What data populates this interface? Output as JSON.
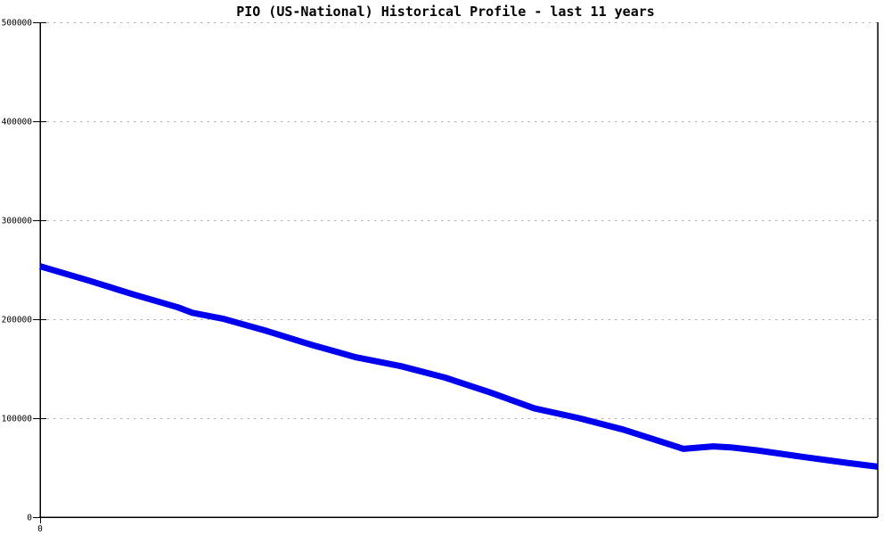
{
  "chart_data": {
    "type": "line",
    "title": "PIO (US-National) Historical Profile - last 11 years",
    "xlabel": "",
    "ylabel": "",
    "xlim": [
      0,
      11
    ],
    "ylim": [
      0,
      500000
    ],
    "y_ticks": [
      0,
      100000,
      200000,
      300000,
      400000,
      500000
    ],
    "y_tick_labels": [
      "0",
      "100000",
      "200000",
      "300000",
      "400000",
      "500000"
    ],
    "x_tick_labels": [
      {
        "label": "0",
        "x": 0
      }
    ],
    "grid": "horizontal-dashed",
    "legend": "none",
    "colors": {
      "line": "#0000ee",
      "grid": "#b4b4b4",
      "axis": "#000000",
      "text": "#000000",
      "background": "#ffffff"
    },
    "series": [
      {
        "name": "PIO (US-National)",
        "color": "#0000ee",
        "points": [
          {
            "x": 0.0,
            "y": 253500
          },
          {
            "x": 0.64,
            "y": 239000
          },
          {
            "x": 1.23,
            "y": 225000
          },
          {
            "x": 1.81,
            "y": 212000
          },
          {
            "x": 2.0,
            "y": 206500
          },
          {
            "x": 2.4,
            "y": 200500
          },
          {
            "x": 2.98,
            "y": 188000
          },
          {
            "x": 3.57,
            "y": 174000
          },
          {
            "x": 4.15,
            "y": 161500
          },
          {
            "x": 4.74,
            "y": 152500
          },
          {
            "x": 5.32,
            "y": 141000
          },
          {
            "x": 5.91,
            "y": 126000
          },
          {
            "x": 6.49,
            "y": 110000
          },
          {
            "x": 7.08,
            "y": 100000
          },
          {
            "x": 7.66,
            "y": 88500
          },
          {
            "x": 8.45,
            "y": 69000
          },
          {
            "x": 8.84,
            "y": 71500
          },
          {
            "x": 9.07,
            "y": 70500
          },
          {
            "x": 9.42,
            "y": 67500
          },
          {
            "x": 10.01,
            "y": 61000
          },
          {
            "x": 10.59,
            "y": 55000
          },
          {
            "x": 11.0,
            "y": 51000
          }
        ]
      }
    ]
  }
}
